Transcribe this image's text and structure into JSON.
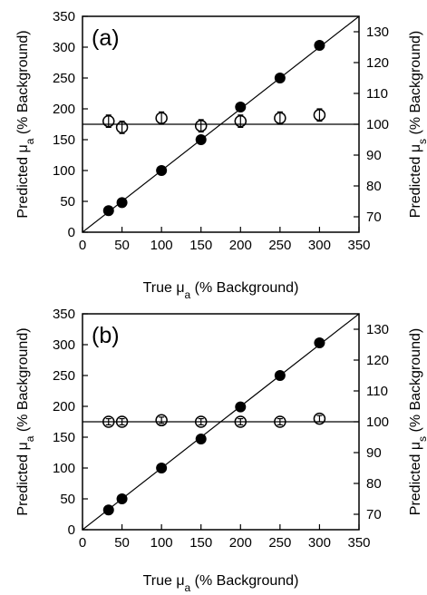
{
  "chart_data": [
    {
      "type": "scatter",
      "panel_label": "(a)",
      "xlabel": "True μa (% Background)",
      "ylabel_left": "Predicted μa (% Background)",
      "ylabel_right": "Predicted μs (% Background)",
      "xlim": [
        0,
        350
      ],
      "ylim_left": [
        0,
        350
      ],
      "ylim_right": [
        65,
        135
      ],
      "x_ticks": [
        0,
        50,
        100,
        150,
        200,
        250,
        300,
        350
      ],
      "y_left_ticks": [
        0,
        50,
        100,
        150,
        200,
        250,
        300,
        350
      ],
      "y_right_ticks": [
        70,
        80,
        90,
        100,
        110,
        120,
        130
      ],
      "reference_lines": {
        "identity": "y = x (left axis)",
        "horizontal_right": 100
      },
      "series": [
        {
          "marker": "filled-circle",
          "axis": "left",
          "x": [
            33,
            50,
            100,
            150,
            200,
            250,
            300
          ],
          "y": [
            35,
            48,
            100,
            150,
            203,
            250,
            303
          ]
        },
        {
          "marker": "open-circle-errorbar",
          "axis": "right",
          "x": [
            33,
            50,
            100,
            150,
            200,
            250,
            300
          ],
          "y": [
            101,
            99,
            102,
            99.5,
            101,
            102,
            103
          ],
          "err": [
            2,
            2,
            2,
            2,
            2,
            2,
            2
          ]
        }
      ]
    },
    {
      "type": "scatter",
      "panel_label": "(b)",
      "xlabel": "True μa (% Background)",
      "ylabel_left": "Predicted μa (% Background)",
      "ylabel_right": "Predicted μs (% Background)",
      "xlim": [
        0,
        350
      ],
      "ylim_left": [
        0,
        350
      ],
      "ylim_right": [
        65,
        135
      ],
      "x_ticks": [
        0,
        50,
        100,
        150,
        200,
        250,
        300,
        350
      ],
      "y_left_ticks": [
        0,
        50,
        100,
        150,
        200,
        250,
        300,
        350
      ],
      "y_right_ticks": [
        70,
        80,
        90,
        100,
        110,
        120,
        130
      ],
      "reference_lines": {
        "identity": "y = x (left axis)",
        "horizontal_right": 100
      },
      "series": [
        {
          "marker": "filled-circle",
          "axis": "left",
          "x": [
            33,
            50,
            100,
            150,
            200,
            250,
            300
          ],
          "y": [
            32,
            50,
            100,
            147,
            199,
            250,
            303
          ]
        },
        {
          "marker": "open-circle-errorbar",
          "axis": "right",
          "x": [
            33,
            50,
            100,
            150,
            200,
            250,
            300
          ],
          "y": [
            100,
            100,
            100.5,
            100,
            100,
            100,
            101
          ],
          "err": [
            1,
            1,
            1,
            1,
            1,
            1,
            1
          ]
        }
      ]
    }
  ]
}
